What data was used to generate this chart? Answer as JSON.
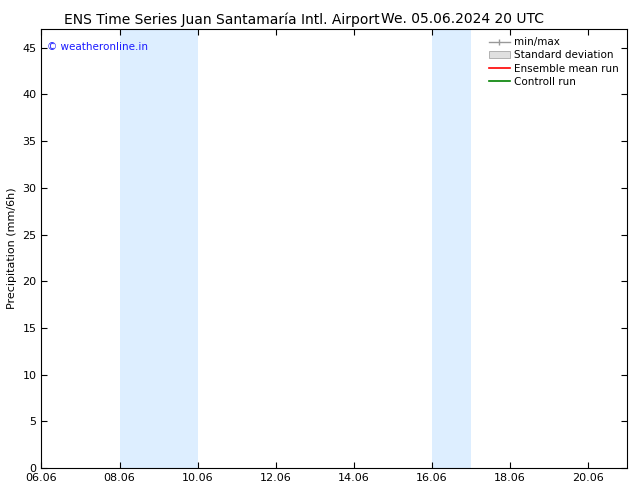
{
  "title_left": "ENS Time Series Juan Santamaría Intl. Airport",
  "title_right": "We. 05.06.2024 20 UTC",
  "ylabel": "Precipitation (mm/6h)",
  "xlabel": "",
  "xlim": [
    6.06,
    21.06
  ],
  "ylim": [
    0,
    47
  ],
  "yticks": [
    0,
    5,
    10,
    15,
    20,
    25,
    30,
    35,
    40,
    45
  ],
  "xtick_labels": [
    "06.06",
    "08.06",
    "10.06",
    "12.06",
    "14.06",
    "16.06",
    "18.06",
    "20.06"
  ],
  "xtick_positions": [
    6.06,
    8.06,
    10.06,
    12.06,
    14.06,
    16.06,
    18.06,
    20.06
  ],
  "shaded_bands": [
    {
      "xmin": 8.06,
      "xmax": 10.06
    },
    {
      "xmin": 16.06,
      "xmax": 17.06
    }
  ],
  "shade_color": "#ddeeff",
  "watermark_text": "© weatheronline.in",
  "watermark_color": "#1a1aff",
  "legend_entries": [
    "min/max",
    "Standard deviation",
    "Ensemble mean run",
    "Controll run"
  ],
  "background_color": "#ffffff",
  "font_size": 8,
  "title_font_size": 10
}
